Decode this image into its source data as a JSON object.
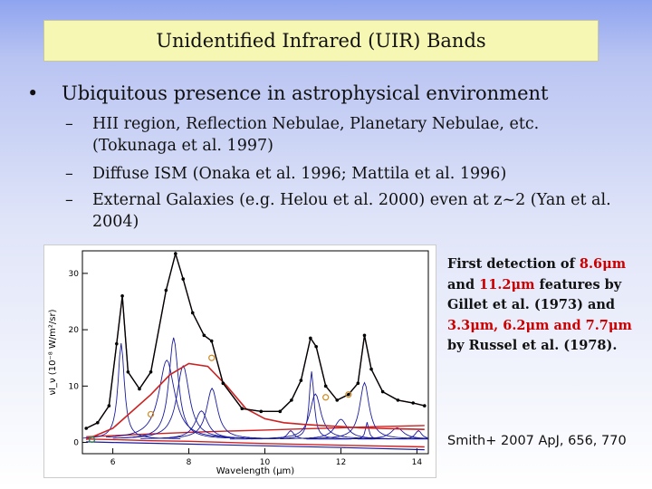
{
  "slide": {
    "title": "Unidentified Infrared (UIR) Bands",
    "bullet": {
      "marker": "•",
      "text": "Ubiquitous presence in astrophysical environment"
    },
    "sub_bullets": [
      {
        "marker": "–",
        "text": "HII region, Reflection Nebulae, Planetary Nebulae, etc. (Tokunaga et al. 1997)"
      },
      {
        "marker": "–",
        "text": "Diffuse ISM (Onaka et al. 1996; Mattila et al. 1996)"
      },
      {
        "marker": "–",
        "text": "External Galaxies (e.g. Helou et al. 2000) even at z~2 (Yan et al. 2004)"
      }
    ],
    "caption": {
      "p1": "First detection of",
      "w1": "8.6μm",
      "p2": "and",
      "w2": "11.2μm",
      "p3": "features by Gillet et al. (1973) and",
      "w3": "3.3μm, 6.2μm and 7.7μm",
      "p4": "by Russel et al. (1978)."
    },
    "citation": "Smith+ 2007 ApJ, 656, 770"
  },
  "chart_data": {
    "type": "line",
    "xlabel": "Wavelength (μm)",
    "ylabel": "νI_ν (10⁻⁸ W/m²/sr)",
    "xlim": [
      5.2,
      14.3
    ],
    "ylim": [
      -2,
      34
    ],
    "xticks": [
      6,
      8,
      10,
      12,
      14
    ],
    "yticks": [
      0,
      10,
      20,
      30
    ],
    "colors": {
      "observed": "#000000",
      "total_fit": "#b03060",
      "continuum": "#cc2222",
      "features": "#1a1aa0",
      "continuum_sum": "#d08a20",
      "dust": "#2e8b57"
    },
    "series": [
      {
        "values": [
          [
            5.3,
            2.5
          ],
          [
            5.6,
            3.5
          ],
          [
            5.9,
            6.5
          ],
          [
            6.1,
            17.5
          ],
          [
            6.25,
            26.0
          ],
          [
            6.4,
            12.5
          ],
          [
            6.7,
            9.5
          ],
          [
            7.0,
            12.5
          ],
          [
            7.4,
            27.0
          ],
          [
            7.65,
            33.5
          ],
          [
            7.85,
            29.0
          ],
          [
            8.1,
            23.0
          ],
          [
            8.4,
            19.0
          ],
          [
            8.6,
            18.0
          ],
          [
            8.9,
            10.5
          ],
          [
            9.4,
            6.0
          ],
          [
            9.9,
            5.5
          ],
          [
            10.4,
            5.5
          ],
          [
            10.7,
            7.5
          ],
          [
            10.95,
            11.0
          ],
          [
            11.2,
            18.5
          ],
          [
            11.35,
            17.0
          ],
          [
            11.6,
            10.0
          ],
          [
            11.9,
            7.5
          ],
          [
            12.2,
            8.5
          ],
          [
            12.45,
            10.5
          ],
          [
            12.62,
            19.0
          ],
          [
            12.8,
            13.0
          ],
          [
            13.1,
            9.0
          ],
          [
            13.5,
            7.5
          ],
          [
            13.9,
            7.0
          ],
          [
            14.2,
            6.5
          ]
        ]
      },
      {
        "values": [
          [
            5.3,
            0.5
          ],
          [
            6.0,
            2.5
          ],
          [
            7.0,
            8.5
          ],
          [
            7.5,
            12.0
          ],
          [
            8.0,
            14.0
          ],
          [
            8.5,
            13.5
          ],
          [
            9.0,
            10.0
          ],
          [
            9.5,
            6.0
          ],
          [
            10.0,
            4.2
          ],
          [
            10.5,
            3.5
          ],
          [
            11.0,
            3.2
          ],
          [
            11.5,
            3.0
          ],
          [
            12.0,
            2.8
          ],
          [
            12.5,
            2.6
          ],
          [
            13.0,
            2.5
          ],
          [
            13.5,
            2.4
          ],
          [
            14.2,
            2.3
          ]
        ]
      },
      {
        "values": [
          [
            5.3,
            1.0
          ],
          [
            6.0,
            1.2
          ],
          [
            7.0,
            1.5
          ],
          [
            8.0,
            1.8
          ],
          [
            9.0,
            2.0
          ],
          [
            10.0,
            2.2
          ],
          [
            11.0,
            2.4
          ],
          [
            12.0,
            2.6
          ],
          [
            13.0,
            2.8
          ],
          [
            14.2,
            3.0
          ]
        ]
      },
      {
        "values": [
          [
            5.3,
            0.6
          ],
          [
            6.0,
            0.5
          ],
          [
            7.0,
            0.3
          ],
          [
            8.0,
            0.2
          ],
          [
            10.0,
            -0.2
          ],
          [
            12.0,
            -0.5
          ],
          [
            14.2,
            -0.8
          ]
        ]
      },
      {
        "values": [
          [
            5.3,
            0.1
          ],
          [
            6.0,
            0.0
          ],
          [
            8.0,
            -0.3
          ],
          [
            10.0,
            -0.6
          ],
          [
            12.0,
            -0.9
          ],
          [
            14.2,
            -1.3
          ]
        ]
      }
    ],
    "features": [
      {
        "center": 6.22,
        "fwhm": 0.2,
        "height": 17.0
      },
      {
        "center": 7.42,
        "fwhm": 0.5,
        "height": 14.0
      },
      {
        "center": 7.6,
        "fwhm": 0.3,
        "height": 18.0
      },
      {
        "center": 7.85,
        "fwhm": 0.4,
        "height": 13.0
      },
      {
        "center": 8.33,
        "fwhm": 0.4,
        "height": 5.0
      },
      {
        "center": 8.61,
        "fwhm": 0.35,
        "height": 9.0
      },
      {
        "center": 10.68,
        "fwhm": 0.2,
        "height": 1.5
      },
      {
        "center": 11.23,
        "fwhm": 0.15,
        "height": 12.0
      },
      {
        "center": 11.33,
        "fwhm": 0.35,
        "height": 8.0
      },
      {
        "center": 12.0,
        "fwhm": 0.4,
        "height": 3.5
      },
      {
        "center": 12.62,
        "fwhm": 0.3,
        "height": 10.0
      },
      {
        "center": 12.69,
        "fwhm": 0.1,
        "height": 3.0
      },
      {
        "center": 13.48,
        "fwhm": 0.4,
        "height": 2.0
      },
      {
        "center": 14.04,
        "fwhm": 0.2,
        "height": 1.5
      }
    ]
  }
}
